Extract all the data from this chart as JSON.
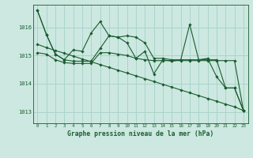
{
  "bg_color": "#cce8e0",
  "grid_color": "#aad4cc",
  "line_color": "#1a5c30",
  "title": "Graphe pression niveau de la mer (hPa)",
  "xlim": [
    -0.5,
    23.5
  ],
  "ylim": [
    1012.6,
    1016.8
  ],
  "yticks": [
    1013,
    1014,
    1015,
    1016
  ],
  "xticks": [
    0,
    1,
    2,
    3,
    4,
    5,
    6,
    7,
    8,
    9,
    10,
    11,
    12,
    13,
    14,
    15,
    16,
    17,
    18,
    19,
    20,
    21,
    22,
    23
  ],
  "line_volatile": [
    1016.6,
    1015.75,
    1015.05,
    1014.85,
    1015.2,
    1015.15,
    1015.8,
    1016.2,
    1015.7,
    1015.65,
    1015.45,
    1014.9,
    1015.15,
    1014.35,
    1014.85,
    1014.8,
    1014.85,
    1016.1,
    1014.85,
    1014.9,
    1014.25,
    1013.85,
    1013.85,
    1013.05
  ],
  "line_upper": [
    1016.6,
    1015.75,
    1015.05,
    1014.85,
    1014.8,
    1014.8,
    1014.8,
    1015.25,
    1015.7,
    1015.65,
    1015.7,
    1015.65,
    1015.45,
    1014.9,
    1014.9,
    1014.85,
    1014.85,
    1014.85,
    1014.85,
    1014.85,
    1014.85,
    1013.85,
    1013.85,
    1013.05
  ],
  "line_mid": [
    1015.1,
    1015.05,
    1014.85,
    1014.75,
    1014.72,
    1014.72,
    1014.72,
    1015.1,
    1015.1,
    1015.05,
    1015.0,
    1014.9,
    1014.85,
    1014.82,
    1014.82,
    1014.82,
    1014.82,
    1014.82,
    1014.82,
    1014.82,
    1014.82,
    1014.82,
    1014.82,
    1013.05
  ],
  "line_decline": [
    1015.4,
    1015.28,
    1015.18,
    1015.08,
    1014.98,
    1014.88,
    1014.78,
    1014.68,
    1014.58,
    1014.48,
    1014.38,
    1014.28,
    1014.18,
    1014.08,
    1013.98,
    1013.88,
    1013.78,
    1013.68,
    1013.58,
    1013.48,
    1013.38,
    1013.28,
    1013.18,
    1013.05
  ]
}
